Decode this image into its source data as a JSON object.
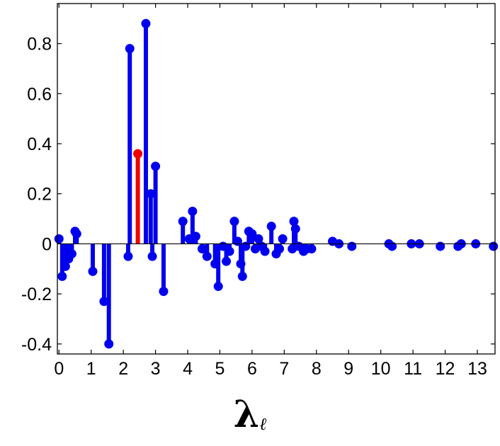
{
  "chart_data": {
    "type": "stem",
    "xlabel": "λ",
    "xlabel_subscript": "ℓ",
    "ylabel": "",
    "title": "",
    "xlim": [
      -0.05,
      13.55
    ],
    "ylim": [
      -0.44,
      0.96
    ],
    "xticks": [
      0,
      1,
      2,
      3,
      4,
      5,
      6,
      7,
      8,
      9,
      10,
      11,
      12,
      13
    ],
    "yticks": [
      -0.4,
      -0.2,
      0,
      0.2,
      0.4,
      0.6,
      0.8
    ],
    "ytick_labels": [
      "-0.4",
      "-0.2",
      "0",
      "0.2",
      "0.4",
      "0.6",
      "0.8"
    ],
    "grid": false,
    "colors": {
      "stem": "#0000ee",
      "highlight": "#ee0000",
      "axis": "#000000"
    },
    "series": [
      {
        "color": "#0000ee",
        "points": [
          {
            "x": 0.0,
            "y": 0.02
          },
          {
            "x": 0.1,
            "y": -0.13
          },
          {
            "x": 0.2,
            "y": -0.09
          },
          {
            "x": 0.3,
            "y": -0.06
          },
          {
            "x": 0.4,
            "y": -0.04
          },
          {
            "x": 0.5,
            "y": 0.05
          },
          {
            "x": 0.55,
            "y": 0.04
          },
          {
            "x": 1.05,
            "y": -0.11
          },
          {
            "x": 1.4,
            "y": -0.23
          },
          {
            "x": 1.55,
            "y": -0.4
          },
          {
            "x": 2.15,
            "y": -0.05
          },
          {
            "x": 2.2,
            "y": 0.78
          },
          {
            "x": 2.7,
            "y": 0.88
          },
          {
            "x": 2.85,
            "y": 0.2
          },
          {
            "x": 2.9,
            "y": -0.05
          },
          {
            "x": 3.0,
            "y": 0.31
          },
          {
            "x": 3.25,
            "y": -0.19
          },
          {
            "x": 3.85,
            "y": 0.09
          },
          {
            "x": 4.05,
            "y": 0.02
          },
          {
            "x": 4.15,
            "y": 0.13
          },
          {
            "x": 4.25,
            "y": 0.03
          },
          {
            "x": 4.45,
            "y": -0.02
          },
          {
            "x": 4.6,
            "y": -0.05
          },
          {
            "x": 4.85,
            "y": -0.08
          },
          {
            "x": 4.95,
            "y": -0.17
          },
          {
            "x": 5.1,
            "y": -0.01
          },
          {
            "x": 5.2,
            "y": -0.07
          },
          {
            "x": 5.3,
            "y": -0.03
          },
          {
            "x": 5.45,
            "y": 0.09
          },
          {
            "x": 5.55,
            "y": 0.01
          },
          {
            "x": 5.65,
            "y": -0.08
          },
          {
            "x": 5.7,
            "y": -0.13
          },
          {
            "x": 5.8,
            "y": -0.01
          },
          {
            "x": 5.9,
            "y": 0.05
          },
          {
            "x": 6.0,
            "y": 0.04
          },
          {
            "x": 6.1,
            "y": -0.02
          },
          {
            "x": 6.2,
            "y": 0.02
          },
          {
            "x": 6.3,
            "y": -0.01
          },
          {
            "x": 6.4,
            "y": -0.03
          },
          {
            "x": 6.6,
            "y": 0.07
          },
          {
            "x": 6.75,
            "y": -0.04
          },
          {
            "x": 6.85,
            "y": -0.02
          },
          {
            "x": 6.95,
            "y": 0.02
          },
          {
            "x": 7.25,
            "y": -0.02
          },
          {
            "x": 7.3,
            "y": 0.09
          },
          {
            "x": 7.35,
            "y": 0.06
          },
          {
            "x": 7.45,
            "y": -0.01
          },
          {
            "x": 7.6,
            "y": -0.03
          },
          {
            "x": 7.7,
            "y": -0.02
          },
          {
            "x": 7.85,
            "y": -0.02
          },
          {
            "x": 8.5,
            "y": 0.01
          },
          {
            "x": 8.7,
            "y": 0.0
          },
          {
            "x": 9.1,
            "y": -0.01
          },
          {
            "x": 10.25,
            "y": 0.0
          },
          {
            "x": 10.35,
            "y": -0.01
          },
          {
            "x": 10.95,
            "y": 0.0
          },
          {
            "x": 11.2,
            "y": 0.0
          },
          {
            "x": 11.85,
            "y": -0.01
          },
          {
            "x": 12.4,
            "y": -0.01
          },
          {
            "x": 12.5,
            "y": 0.0
          },
          {
            "x": 12.95,
            "y": 0.0
          },
          {
            "x": 13.5,
            "y": -0.01
          }
        ]
      },
      {
        "color": "#ee0000",
        "points": [
          {
            "x": 2.45,
            "y": 0.36
          }
        ]
      }
    ]
  }
}
